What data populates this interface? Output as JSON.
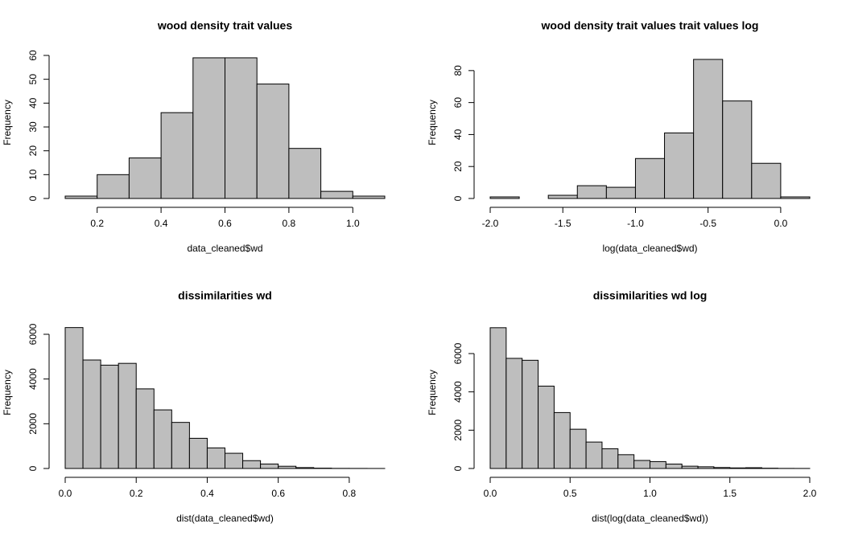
{
  "chart_data": [
    {
      "type": "histogram",
      "title": "wood density trait values",
      "xlabel": "data_cleaned$wd",
      "ylabel": "Frequency",
      "bins": [
        0.1,
        0.2,
        0.3,
        0.4,
        0.5,
        0.6,
        0.7,
        0.8,
        0.9,
        1.0,
        1.1
      ],
      "values": [
        1,
        10,
        17,
        36,
        59,
        59,
        48,
        21,
        3,
        1
      ],
      "color": "#bebebe",
      "xlim": [
        0.1,
        1.1
      ],
      "ylim": [
        0,
        63.7
      ],
      "xticks": [
        0.2,
        0.4,
        0.6,
        0.8,
        {
          "value": 1.0,
          "label": "1.0"
        }
      ],
      "yticks": [
        0,
        10,
        20,
        30,
        40,
        50,
        60
      ]
    },
    {
      "type": "histogram",
      "title": "wood density trait values trait values log",
      "xlabel": "log(data_cleaned$wd)",
      "ylabel": "Frequency",
      "bins": [
        -2.0,
        -1.8,
        -1.6,
        -1.4,
        -1.2,
        -1.0,
        -0.8,
        -0.6,
        -0.4,
        -0.2,
        0.0,
        0.2
      ],
      "values": [
        1,
        0,
        2,
        8,
        7,
        25,
        41,
        87,
        61,
        22,
        1
      ],
      "color": "#bebebe",
      "xlim": [
        -2.0,
        0.2
      ],
      "ylim": [
        0,
        95
      ],
      "xticks": [
        {
          "value": -2.0,
          "label": "-2.0"
        },
        -1.5,
        {
          "value": -1.0,
          "label": "-1.0"
        },
        -0.5,
        {
          "value": 0.0,
          "label": "0.0"
        }
      ],
      "yticks": [
        0,
        20,
        40,
        60,
        80
      ]
    },
    {
      "type": "histogram",
      "title": "dissimilarities wd",
      "xlabel": "dist(data_cleaned$wd)",
      "ylabel": "Frequency",
      "bins": [
        0,
        0.05,
        0.1,
        0.15,
        0.2,
        0.25,
        0.3,
        0.35,
        0.4,
        0.45,
        0.5,
        0.55,
        0.6,
        0.65,
        0.7,
        0.75,
        0.8,
        0.85,
        0.9
      ],
      "values": [
        6300,
        4850,
        4620,
        4700,
        3560,
        2620,
        2060,
        1350,
        920,
        680,
        350,
        200,
        100,
        40,
        15,
        5,
        3,
        1
      ],
      "color": "#bebebe",
      "xlim": [
        0,
        0.9
      ],
      "ylim": [
        0,
        6790
      ],
      "xticks": [
        {
          "value": 0.0,
          "label": "0.0"
        },
        0.2,
        0.4,
        0.6,
        0.8
      ],
      "yticks": [
        0,
        2000,
        4000,
        6000
      ]
    },
    {
      "type": "histogram",
      "title": "dissimilarities wd log",
      "xlabel": "dist(log(data_cleaned$wd))",
      "ylabel": "Frequency",
      "bins": [
        0,
        0.1,
        0.2,
        0.3,
        0.4,
        0.5,
        0.6,
        0.7,
        0.8,
        0.9,
        1.0,
        1.1,
        1.2,
        1.3,
        1.4,
        1.5,
        1.6,
        1.7,
        1.8,
        1.9,
        2.0
      ],
      "values": [
        7350,
        5750,
        5650,
        4300,
        2920,
        2050,
        1380,
        1030,
        720,
        420,
        360,
        230,
        120,
        90,
        50,
        30,
        40,
        15,
        5,
        3
      ],
      "color": "#bebebe",
      "xlim": [
        0,
        2.0
      ],
      "ylim": [
        0,
        7930
      ],
      "xticks": [
        {
          "value": 0.0,
          "label": "0.0"
        },
        0.5,
        {
          "value": 1.0,
          "label": "1.0"
        },
        1.5,
        {
          "value": 2.0,
          "label": "2.0"
        }
      ],
      "yticks": [
        0,
        2000,
        4000,
        6000
      ]
    }
  ]
}
